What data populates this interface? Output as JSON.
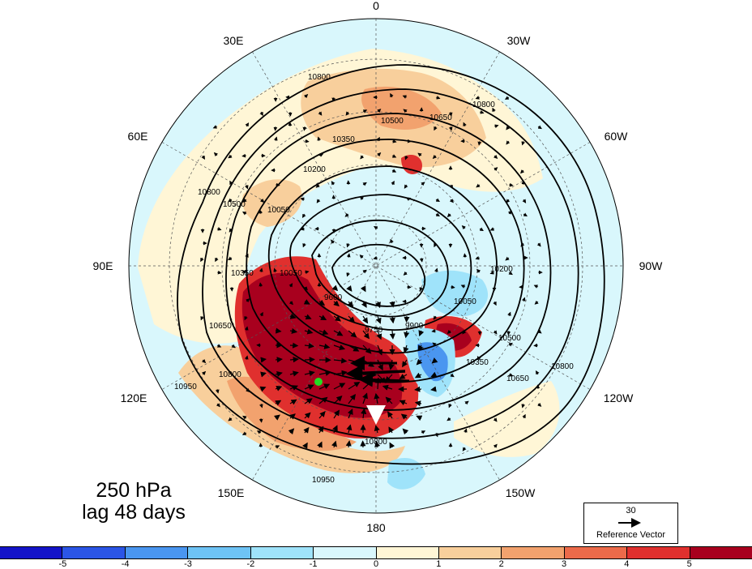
{
  "title": {
    "level": "250 hPa",
    "lag": "lag 48 days"
  },
  "longitude_labels": [
    "0",
    "30W",
    "60W",
    "90W",
    "120W",
    "150W",
    "180",
    "150E",
    "120E",
    "90E",
    "60E",
    "30E"
  ],
  "contour_labels": [
    "10800",
    "10650",
    "10500",
    "10350",
    "10200",
    "10050",
    "9900",
    "9750",
    "9600",
    "10950"
  ],
  "marker": {
    "color": "#22dd22",
    "label": ""
  },
  "reference_vector": {
    "value": "30",
    "label": "Reference Vector"
  },
  "colorbar": {
    "colors": [
      "#1414c8",
      "#2b55e6",
      "#4a96f0",
      "#6ec3f5",
      "#9fe3fa",
      "#d9f7fc",
      "#fff6d6",
      "#f8cf9c",
      "#f2a26e",
      "#ec6a4a",
      "#e0302e",
      "#a8001e"
    ],
    "ticks": [
      "-5",
      "-4",
      "-3",
      "-2",
      "-1",
      "0",
      "1",
      "2",
      "3",
      "4",
      "5"
    ]
  },
  "shading": {
    "dominant": "#d9f7fc",
    "positive_anomaly": "#a8001e",
    "negative_anomaly": "#2b55e6"
  }
}
